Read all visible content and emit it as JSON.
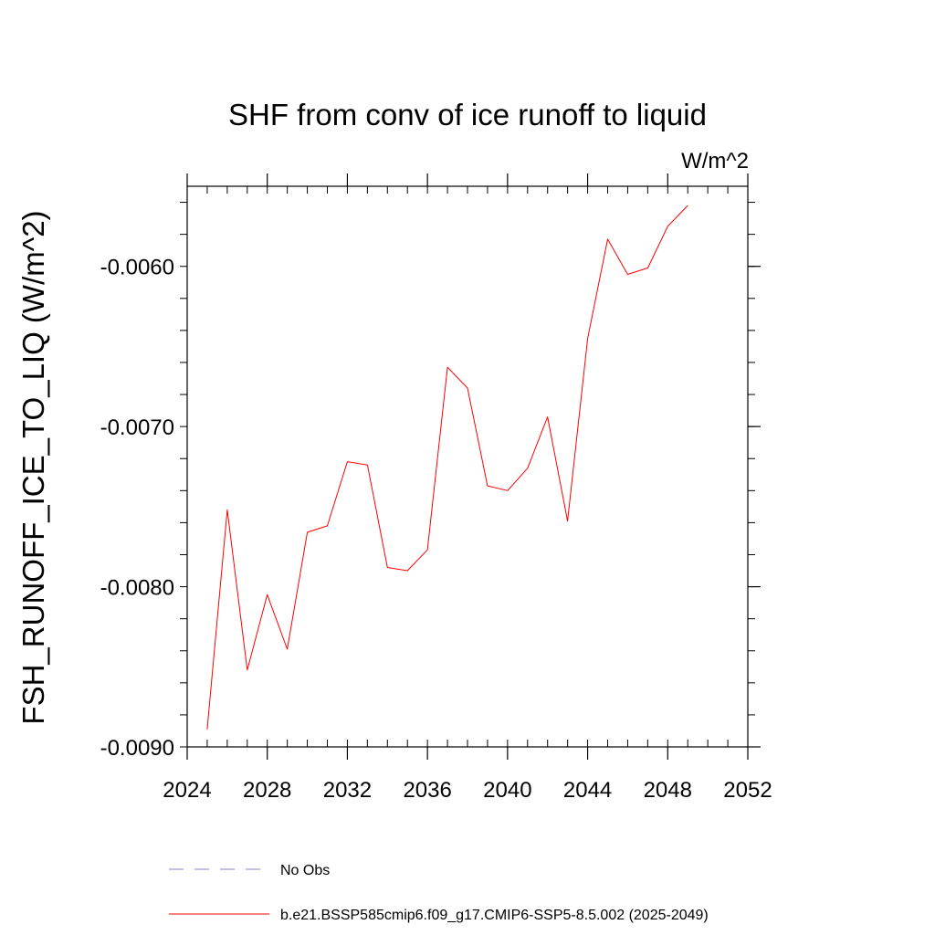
{
  "chart_data": {
    "type": "line",
    "title": "SHF from conv of ice runoff to liquid",
    "units_label": "W/m^2",
    "ylabel": "FSH_RUNOFF_ICE_TO_LIQ  (W/m^2)",
    "xlabel": "",
    "xlim": [
      2024,
      2052
    ],
    "ylim": [
      -0.009,
      -0.0055
    ],
    "x_ticks": [
      2024,
      2028,
      2032,
      2036,
      2040,
      2044,
      2048,
      2052
    ],
    "x_tick_labels": [
      "2024",
      "2028",
      "2032",
      "2036",
      "2040",
      "2044",
      "2048",
      "2052"
    ],
    "y_ticks": [
      -0.009,
      -0.008,
      -0.007,
      -0.006
    ],
    "y_tick_labels": [
      "-0.0090",
      "-0.0080",
      "-0.0070",
      "-0.0060"
    ],
    "grid": false,
    "legend_position": "bottom",
    "series": [
      {
        "name": "b.e21.BSSP585cmip6.f09_g17.CMIP6-SSP5-8.5.002 (2025-2049)",
        "color": "#ff0000",
        "style": "solid",
        "x": [
          2025,
          2026,
          2027,
          2028,
          2029,
          2030,
          2031,
          2032,
          2033,
          2034,
          2035,
          2036,
          2037,
          2038,
          2039,
          2040,
          2041,
          2042,
          2043,
          2044,
          2045,
          2046,
          2047,
          2048,
          2049
        ],
        "y": [
          -0.00889,
          -0.00752,
          -0.00852,
          -0.00805,
          -0.00839,
          -0.00766,
          -0.00762,
          -0.00722,
          -0.00724,
          -0.00788,
          -0.0079,
          -0.00777,
          -0.00663,
          -0.00676,
          -0.00737,
          -0.0074,
          -0.00726,
          -0.00694,
          -0.00759,
          -0.00645,
          -0.00583,
          -0.00605,
          -0.00601,
          -0.00575,
          -0.00562
        ]
      }
    ],
    "legend": [
      {
        "label": "No Obs",
        "color": "#8080c0",
        "style": "dashed"
      },
      {
        "label": "b.e21.BSSP585cmip6.f09_g17.CMIP6-SSP5-8.5.002 (2025-2049)",
        "color": "#ff0000",
        "style": "solid"
      }
    ]
  }
}
